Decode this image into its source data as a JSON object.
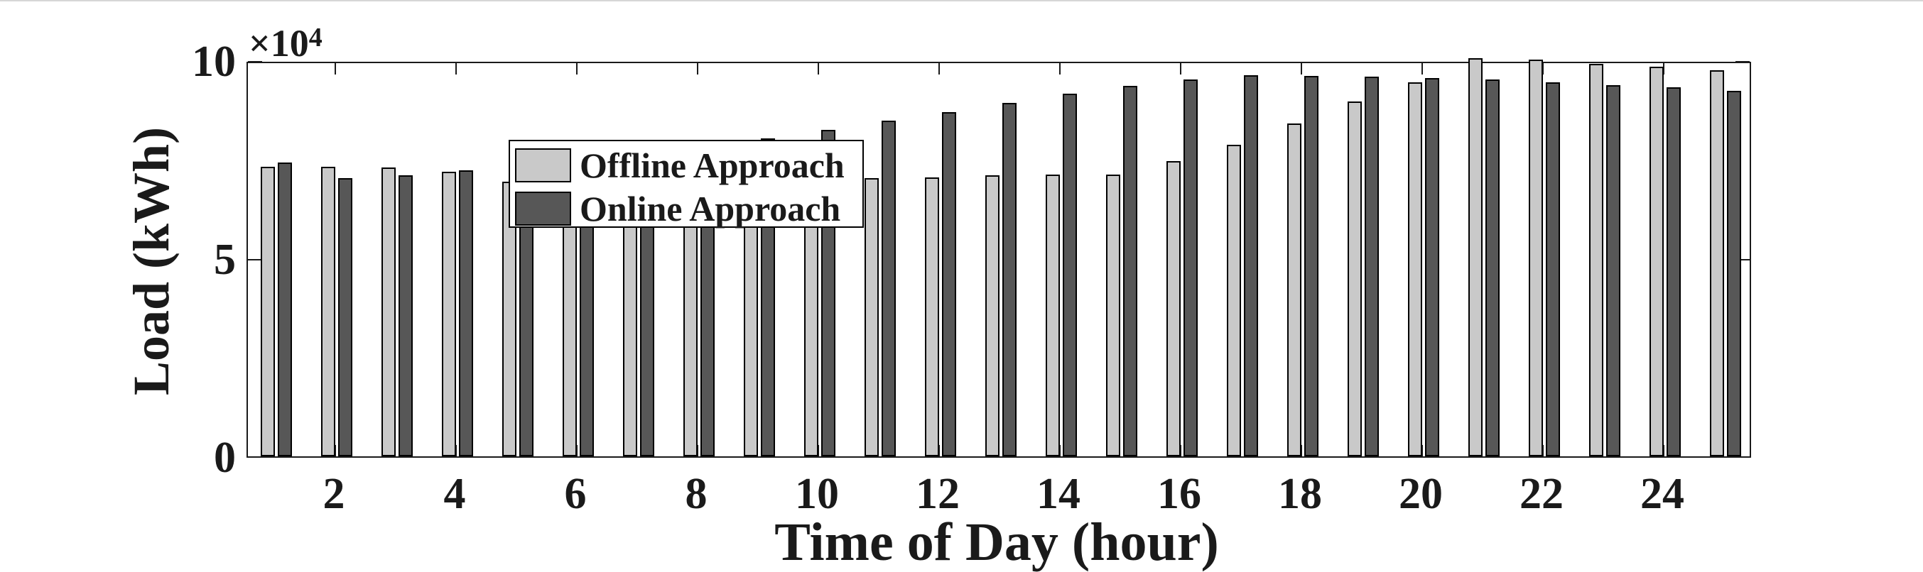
{
  "figure": {
    "background": "#ffffff",
    "top_edge_line_color": "#d6d6d6",
    "axis_color": "#1a1a1a",
    "bar_edge_color": "#000000"
  },
  "chart_data": {
    "type": "bar",
    "title": "",
    "xlabel": "Time of Day (hour)",
    "ylabel": "Load (kWh)",
    "y_mult_base": "×10",
    "y_mult_exp": "4",
    "values_unit": "x10^4 kWh",
    "ylim": [
      0,
      10
    ],
    "yticks": [
      0,
      5,
      10
    ],
    "xticks": [
      2,
      4,
      6,
      8,
      10,
      12,
      14,
      16,
      18,
      20,
      22,
      24
    ],
    "grid": false,
    "legend_position": "upper-left",
    "categories": [
      1,
      2,
      3,
      4,
      5,
      6,
      7,
      8,
      9,
      10,
      11,
      12,
      13,
      14,
      15,
      16,
      17,
      18,
      19,
      20,
      21,
      22,
      23,
      24,
      25
    ],
    "series": [
      {
        "name": "Offline Approach",
        "color": "#c9c9c9",
        "values": [
          7.32,
          7.31,
          7.3,
          7.18,
          6.94,
          6.78,
          6.86,
          6.93,
          7.02,
          7.02,
          7.03,
          7.05,
          7.1,
          7.12,
          7.12,
          7.45,
          7.86,
          8.4,
          8.96,
          9.44,
          10.05,
          10.02,
          9.91,
          9.84,
          9.75
        ]
      },
      {
        "name": "Online Approach",
        "color": "#575757",
        "values": [
          7.42,
          7.02,
          7.1,
          7.23,
          7.4,
          7.52,
          7.67,
          7.86,
          8.03,
          8.24,
          8.47,
          8.7,
          8.92,
          9.15,
          9.35,
          9.51,
          9.62,
          9.6,
          9.58,
          9.56,
          9.51,
          9.44,
          9.37,
          9.32,
          9.23
        ]
      }
    ]
  }
}
